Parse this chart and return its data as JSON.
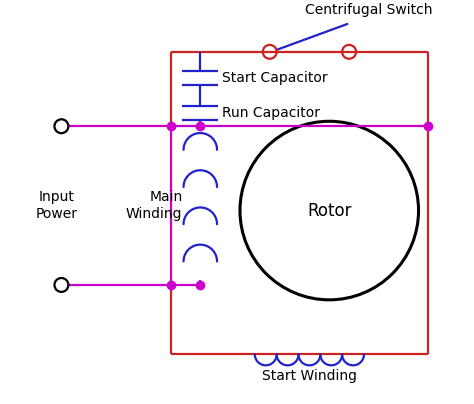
{
  "bg_color": "#ffffff",
  "red": "#cc2222",
  "blue": "#2222cc",
  "magenta": "#cc00cc",
  "black": "#000000",
  "figsize": [
    4.74,
    4.04
  ],
  "dpi": 100,
  "labels": {
    "centrifugal_switch": "Centrifugal Switch",
    "start_capacitor": "Start Capacitor",
    "run_capacitor": "Run Capacitor",
    "input_power": "Input\nPower",
    "main_winding": "Main\nWinding",
    "rotor": "Rotor",
    "start_winding": "Start Winding"
  }
}
